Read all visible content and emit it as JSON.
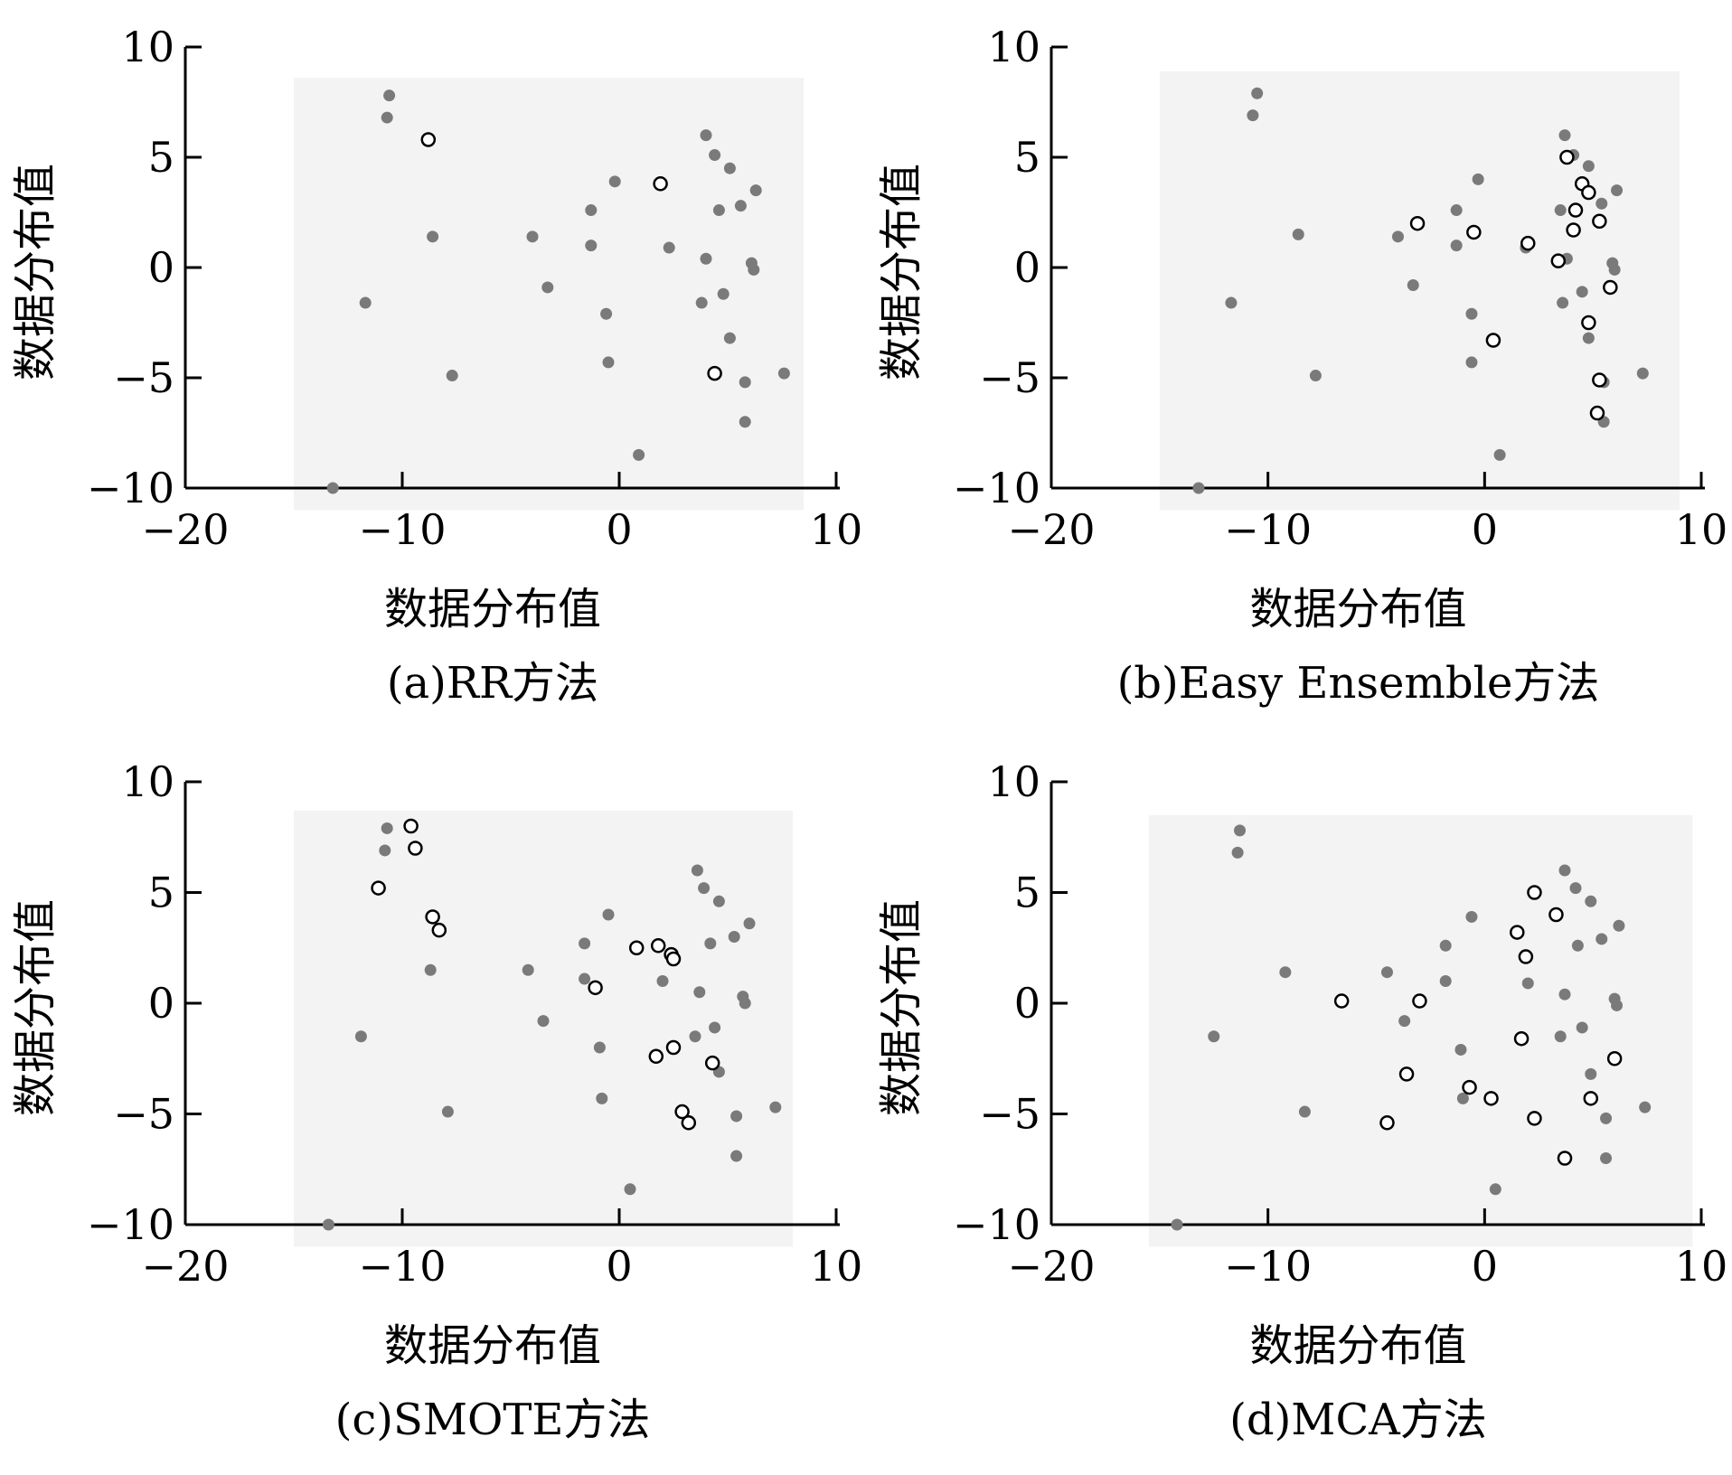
{
  "chart_data": [
    {
      "type": "scatter",
      "caption": "(a)RR方法",
      "xlabel": "数据分布值",
      "ylabel": "数据分布值",
      "xlim": [
        -20,
        10
      ],
      "ylim": [
        -10,
        10
      ],
      "xticks": [
        -20,
        -10,
        0,
        10
      ],
      "yticks": [
        10,
        5,
        0,
        -5,
        -10
      ],
      "shaded_region": {
        "x": [
          -15,
          8.5
        ],
        "y": [
          -11,
          8.6
        ]
      },
      "series": [
        {
          "marker": "filled",
          "color": "#7a7a7a",
          "points": [
            [
              -10.6,
              7.8
            ],
            [
              -10.7,
              6.8
            ],
            [
              -8.6,
              1.4
            ],
            [
              -11.7,
              -1.6
            ],
            [
              -7.7,
              -4.9
            ],
            [
              -13.2,
              -10
            ],
            [
              -4.0,
              1.4
            ],
            [
              -3.3,
              -0.9
            ],
            [
              -1.3,
              2.6
            ],
            [
              -1.3,
              1.0
            ],
            [
              -0.6,
              -2.1
            ],
            [
              -0.5,
              -4.3
            ],
            [
              -0.2,
              3.9
            ],
            [
              0.9,
              -8.5
            ],
            [
              2.3,
              0.9
            ],
            [
              4.0,
              6.0
            ],
            [
              4.4,
              5.1
            ],
            [
              5.1,
              4.5
            ],
            [
              4.6,
              2.6
            ],
            [
              5.6,
              2.8
            ],
            [
              6.3,
              3.5
            ],
            [
              4.0,
              0.4
            ],
            [
              6.1,
              0.2
            ],
            [
              6.2,
              -0.1
            ],
            [
              3.8,
              -1.6
            ],
            [
              4.8,
              -1.2
            ],
            [
              5.1,
              -3.2
            ],
            [
              5.8,
              -5.2
            ],
            [
              7.6,
              -4.8
            ],
            [
              5.8,
              -7.0
            ]
          ]
        },
        {
          "marker": "hollow",
          "color": "#000000",
          "points": [
            [
              -8.8,
              5.8
            ],
            [
              1.9,
              3.8
            ],
            [
              4.4,
              -4.8
            ]
          ]
        }
      ]
    },
    {
      "type": "scatter",
      "caption": "(b)Easy Ensemble方法",
      "xlabel": "数据分布值",
      "ylabel": "数据分布值",
      "xlim": [
        -20,
        10
      ],
      "ylim": [
        -10,
        10
      ],
      "xticks": [
        -20,
        -10,
        0,
        10
      ],
      "yticks": [
        10,
        5,
        0,
        -5,
        -10
      ],
      "shaded_region": {
        "x": [
          -15,
          9
        ],
        "y": [
          -11,
          8.9
        ]
      },
      "series": [
        {
          "marker": "filled",
          "color": "#7a7a7a",
          "points": [
            [
              -10.5,
              7.9
            ],
            [
              -10.7,
              6.9
            ],
            [
              -8.6,
              1.5
            ],
            [
              -11.7,
              -1.6
            ],
            [
              -7.8,
              -4.9
            ],
            [
              -13.2,
              -10
            ],
            [
              -4.0,
              1.4
            ],
            [
              -3.3,
              -0.8
            ],
            [
              -1.3,
              2.6
            ],
            [
              -1.3,
              1.0
            ],
            [
              -0.6,
              -2.1
            ],
            [
              -0.6,
              -4.3
            ],
            [
              -0.3,
              4.0
            ],
            [
              0.7,
              -8.5
            ],
            [
              1.9,
              0.9
            ],
            [
              3.7,
              6.0
            ],
            [
              4.1,
              5.1
            ],
            [
              4.8,
              4.6
            ],
            [
              3.5,
              2.6
            ],
            [
              5.4,
              2.9
            ],
            [
              6.1,
              3.5
            ],
            [
              3.8,
              0.4
            ],
            [
              5.9,
              0.2
            ],
            [
              6.0,
              -0.1
            ],
            [
              3.6,
              -1.6
            ],
            [
              4.5,
              -1.1
            ],
            [
              4.8,
              -3.2
            ],
            [
              5.5,
              -5.2
            ],
            [
              7.3,
              -4.8
            ],
            [
              5.5,
              -7.0
            ]
          ]
        },
        {
          "marker": "hollow",
          "color": "#000000",
          "points": [
            [
              3.8,
              5.0
            ],
            [
              4.5,
              3.8
            ],
            [
              4.8,
              3.4
            ],
            [
              4.2,
              2.6
            ],
            [
              5.3,
              2.1
            ],
            [
              -3.1,
              2.0
            ],
            [
              -0.5,
              1.6
            ],
            [
              4.1,
              1.7
            ],
            [
              2.0,
              1.1
            ],
            [
              3.4,
              0.3
            ],
            [
              5.8,
              -0.9
            ],
            [
              4.8,
              -2.5
            ],
            [
              0.4,
              -3.3
            ],
            [
              5.3,
              -5.1
            ],
            [
              5.2,
              -6.6
            ]
          ]
        }
      ]
    },
    {
      "type": "scatter",
      "caption": "(c)SMOTE方法",
      "xlabel": "数据分布值",
      "ylabel": "数据分布值",
      "xlim": [
        -20,
        10
      ],
      "ylim": [
        -10,
        10
      ],
      "xticks": [
        -20,
        -10,
        0,
        10
      ],
      "yticks": [
        10,
        5,
        0,
        -5,
        -10
      ],
      "shaded_region": {
        "x": [
          -15,
          8
        ],
        "y": [
          -11,
          8.7
        ]
      },
      "series": [
        {
          "marker": "filled",
          "color": "#7a7a7a",
          "points": [
            [
              -10.7,
              7.9
            ],
            [
              -10.8,
              6.9
            ],
            [
              -8.7,
              1.5
            ],
            [
              -11.9,
              -1.5
            ],
            [
              -7.9,
              -4.9
            ],
            [
              -13.4,
              -10
            ],
            [
              -4.2,
              1.5
            ],
            [
              -3.5,
              -0.8
            ],
            [
              -1.6,
              2.7
            ],
            [
              -1.6,
              1.1
            ],
            [
              -0.9,
              -2.0
            ],
            [
              -0.8,
              -4.3
            ],
            [
              -0.5,
              4.0
            ],
            [
              0.5,
              -8.4
            ],
            [
              2.0,
              1.0
            ],
            [
              3.6,
              6.0
            ],
            [
              3.9,
              5.2
            ],
            [
              4.6,
              4.6
            ],
            [
              4.2,
              2.7
            ],
            [
              5.3,
              3.0
            ],
            [
              6.0,
              3.6
            ],
            [
              3.7,
              0.5
            ],
            [
              5.7,
              0.3
            ],
            [
              5.8,
              0.0
            ],
            [
              3.5,
              -1.5
            ],
            [
              4.4,
              -1.1
            ],
            [
              4.6,
              -3.1
            ],
            [
              5.4,
              -5.1
            ],
            [
              7.2,
              -4.7
            ],
            [
              5.4,
              -6.9
            ]
          ]
        },
        {
          "marker": "hollow",
          "color": "#000000",
          "points": [
            [
              -9.6,
              8.0
            ],
            [
              -9.4,
              7.0
            ],
            [
              -11.1,
              5.2
            ],
            [
              -8.6,
              3.9
            ],
            [
              -8.3,
              3.3
            ],
            [
              0.8,
              2.5
            ],
            [
              1.8,
              2.6
            ],
            [
              2.4,
              2.2
            ],
            [
              2.5,
              2.0
            ],
            [
              -1.1,
              0.7
            ],
            [
              1.7,
              -2.4
            ],
            [
              2.5,
              -2.0
            ],
            [
              4.3,
              -2.7
            ],
            [
              2.9,
              -4.9
            ],
            [
              3.2,
              -5.4
            ]
          ]
        }
      ]
    },
    {
      "type": "scatter",
      "caption": "(d)MCA方法",
      "xlabel": "数据分布值",
      "ylabel": "数据分布值",
      "xlim": [
        -20,
        10
      ],
      "ylim": [
        -10,
        10
      ],
      "xticks": [
        -20,
        -10,
        0,
        10
      ],
      "yticks": [
        10,
        5,
        0,
        -5,
        -10
      ],
      "shaded_region": {
        "x": [
          -15.5,
          9.6
        ],
        "y": [
          -11,
          8.5
        ]
      },
      "series": [
        {
          "marker": "filled",
          "color": "#7a7a7a",
          "points": [
            [
              -11.3,
              7.8
            ],
            [
              -11.4,
              6.8
            ],
            [
              -9.2,
              1.4
            ],
            [
              -12.5,
              -1.5
            ],
            [
              -8.3,
              -4.9
            ],
            [
              -14.2,
              -10
            ],
            [
              -4.5,
              1.4
            ],
            [
              -3.7,
              -0.8
            ],
            [
              -1.8,
              2.6
            ],
            [
              -1.8,
              1.0
            ],
            [
              -1.1,
              -2.1
            ],
            [
              -1.0,
              -4.3
            ],
            [
              -0.6,
              3.9
            ],
            [
              0.5,
              -8.4
            ],
            [
              2.0,
              0.9
            ],
            [
              3.7,
              6.0
            ],
            [
              4.2,
              5.2
            ],
            [
              4.9,
              4.6
            ],
            [
              4.3,
              2.6
            ],
            [
              5.4,
              2.9
            ],
            [
              6.2,
              3.5
            ],
            [
              3.7,
              0.4
            ],
            [
              6.0,
              0.2
            ],
            [
              6.1,
              -0.1
            ],
            [
              3.5,
              -1.5
            ],
            [
              4.5,
              -1.1
            ],
            [
              4.9,
              -3.2
            ],
            [
              5.6,
              -5.2
            ],
            [
              7.4,
              -4.7
            ],
            [
              5.6,
              -7.0
            ]
          ]
        },
        {
          "marker": "hollow",
          "color": "#000000",
          "points": [
            [
              2.3,
              5.0
            ],
            [
              3.3,
              4.0
            ],
            [
              1.5,
              3.2
            ],
            [
              1.9,
              2.1
            ],
            [
              -6.6,
              0.1
            ],
            [
              -3.0,
              0.1
            ],
            [
              1.7,
              -1.6
            ],
            [
              6.0,
              -2.5
            ],
            [
              -3.6,
              -3.2
            ],
            [
              -0.7,
              -3.8
            ],
            [
              0.3,
              -4.3
            ],
            [
              4.9,
              -4.3
            ],
            [
              2.3,
              -5.2
            ],
            [
              -4.5,
              -5.4
            ],
            [
              3.7,
              -7.0
            ]
          ]
        }
      ]
    }
  ]
}
